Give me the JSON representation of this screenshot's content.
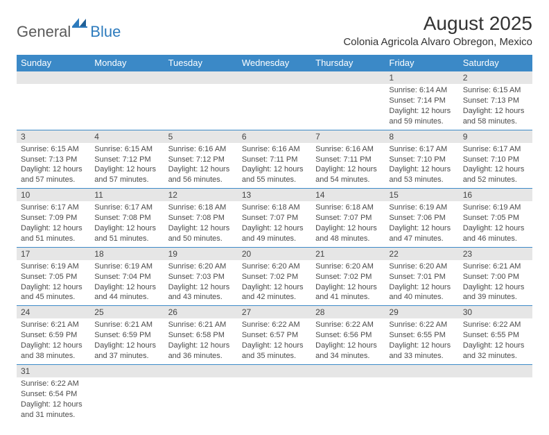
{
  "brand": {
    "part1": "General",
    "part2": "Blue"
  },
  "title": "August 2025",
  "location": "Colonia Agricola Alvaro Obregon, Mexico",
  "headers": [
    "Sunday",
    "Monday",
    "Tuesday",
    "Wednesday",
    "Thursday",
    "Friday",
    "Saturday"
  ],
  "colors": {
    "header_bg": "#3b89c7",
    "header_text": "#ffffff",
    "daynum_bg": "#e6e6e6",
    "border": "#3b89c7",
    "text": "#4a4a4a",
    "title_text": "#333333",
    "logo_gray": "#5a5a5a",
    "logo_blue": "#2d7bbd",
    "background": "#ffffff"
  },
  "typography": {
    "month_title_fontsize": 28,
    "location_fontsize": 15,
    "header_fontsize": 13,
    "cell_fontsize": 11,
    "daynum_fontsize": 12,
    "logo_fontsize": 22
  },
  "weeks": [
    [
      null,
      null,
      null,
      null,
      null,
      {
        "n": "1",
        "sr": "Sunrise: 6:14 AM",
        "ss": "Sunset: 7:14 PM",
        "d1": "Daylight: 12 hours",
        "d2": "and 59 minutes."
      },
      {
        "n": "2",
        "sr": "Sunrise: 6:15 AM",
        "ss": "Sunset: 7:13 PM",
        "d1": "Daylight: 12 hours",
        "d2": "and 58 minutes."
      }
    ],
    [
      {
        "n": "3",
        "sr": "Sunrise: 6:15 AM",
        "ss": "Sunset: 7:13 PM",
        "d1": "Daylight: 12 hours",
        "d2": "and 57 minutes."
      },
      {
        "n": "4",
        "sr": "Sunrise: 6:15 AM",
        "ss": "Sunset: 7:12 PM",
        "d1": "Daylight: 12 hours",
        "d2": "and 57 minutes."
      },
      {
        "n": "5",
        "sr": "Sunrise: 6:16 AM",
        "ss": "Sunset: 7:12 PM",
        "d1": "Daylight: 12 hours",
        "d2": "and 56 minutes."
      },
      {
        "n": "6",
        "sr": "Sunrise: 6:16 AM",
        "ss": "Sunset: 7:11 PM",
        "d1": "Daylight: 12 hours",
        "d2": "and 55 minutes."
      },
      {
        "n": "7",
        "sr": "Sunrise: 6:16 AM",
        "ss": "Sunset: 7:11 PM",
        "d1": "Daylight: 12 hours",
        "d2": "and 54 minutes."
      },
      {
        "n": "8",
        "sr": "Sunrise: 6:17 AM",
        "ss": "Sunset: 7:10 PM",
        "d1": "Daylight: 12 hours",
        "d2": "and 53 minutes."
      },
      {
        "n": "9",
        "sr": "Sunrise: 6:17 AM",
        "ss": "Sunset: 7:10 PM",
        "d1": "Daylight: 12 hours",
        "d2": "and 52 minutes."
      }
    ],
    [
      {
        "n": "10",
        "sr": "Sunrise: 6:17 AM",
        "ss": "Sunset: 7:09 PM",
        "d1": "Daylight: 12 hours",
        "d2": "and 51 minutes."
      },
      {
        "n": "11",
        "sr": "Sunrise: 6:17 AM",
        "ss": "Sunset: 7:08 PM",
        "d1": "Daylight: 12 hours",
        "d2": "and 51 minutes."
      },
      {
        "n": "12",
        "sr": "Sunrise: 6:18 AM",
        "ss": "Sunset: 7:08 PM",
        "d1": "Daylight: 12 hours",
        "d2": "and 50 minutes."
      },
      {
        "n": "13",
        "sr": "Sunrise: 6:18 AM",
        "ss": "Sunset: 7:07 PM",
        "d1": "Daylight: 12 hours",
        "d2": "and 49 minutes."
      },
      {
        "n": "14",
        "sr": "Sunrise: 6:18 AM",
        "ss": "Sunset: 7:07 PM",
        "d1": "Daylight: 12 hours",
        "d2": "and 48 minutes."
      },
      {
        "n": "15",
        "sr": "Sunrise: 6:19 AM",
        "ss": "Sunset: 7:06 PM",
        "d1": "Daylight: 12 hours",
        "d2": "and 47 minutes."
      },
      {
        "n": "16",
        "sr": "Sunrise: 6:19 AM",
        "ss": "Sunset: 7:05 PM",
        "d1": "Daylight: 12 hours",
        "d2": "and 46 minutes."
      }
    ],
    [
      {
        "n": "17",
        "sr": "Sunrise: 6:19 AM",
        "ss": "Sunset: 7:05 PM",
        "d1": "Daylight: 12 hours",
        "d2": "and 45 minutes."
      },
      {
        "n": "18",
        "sr": "Sunrise: 6:19 AM",
        "ss": "Sunset: 7:04 PM",
        "d1": "Daylight: 12 hours",
        "d2": "and 44 minutes."
      },
      {
        "n": "19",
        "sr": "Sunrise: 6:20 AM",
        "ss": "Sunset: 7:03 PM",
        "d1": "Daylight: 12 hours",
        "d2": "and 43 minutes."
      },
      {
        "n": "20",
        "sr": "Sunrise: 6:20 AM",
        "ss": "Sunset: 7:02 PM",
        "d1": "Daylight: 12 hours",
        "d2": "and 42 minutes."
      },
      {
        "n": "21",
        "sr": "Sunrise: 6:20 AM",
        "ss": "Sunset: 7:02 PM",
        "d1": "Daylight: 12 hours",
        "d2": "and 41 minutes."
      },
      {
        "n": "22",
        "sr": "Sunrise: 6:20 AM",
        "ss": "Sunset: 7:01 PM",
        "d1": "Daylight: 12 hours",
        "d2": "and 40 minutes."
      },
      {
        "n": "23",
        "sr": "Sunrise: 6:21 AM",
        "ss": "Sunset: 7:00 PM",
        "d1": "Daylight: 12 hours",
        "d2": "and 39 minutes."
      }
    ],
    [
      {
        "n": "24",
        "sr": "Sunrise: 6:21 AM",
        "ss": "Sunset: 6:59 PM",
        "d1": "Daylight: 12 hours",
        "d2": "and 38 minutes."
      },
      {
        "n": "25",
        "sr": "Sunrise: 6:21 AM",
        "ss": "Sunset: 6:59 PM",
        "d1": "Daylight: 12 hours",
        "d2": "and 37 minutes."
      },
      {
        "n": "26",
        "sr": "Sunrise: 6:21 AM",
        "ss": "Sunset: 6:58 PM",
        "d1": "Daylight: 12 hours",
        "d2": "and 36 minutes."
      },
      {
        "n": "27",
        "sr": "Sunrise: 6:22 AM",
        "ss": "Sunset: 6:57 PM",
        "d1": "Daylight: 12 hours",
        "d2": "and 35 minutes."
      },
      {
        "n": "28",
        "sr": "Sunrise: 6:22 AM",
        "ss": "Sunset: 6:56 PM",
        "d1": "Daylight: 12 hours",
        "d2": "and 34 minutes."
      },
      {
        "n": "29",
        "sr": "Sunrise: 6:22 AM",
        "ss": "Sunset: 6:55 PM",
        "d1": "Daylight: 12 hours",
        "d2": "and 33 minutes."
      },
      {
        "n": "30",
        "sr": "Sunrise: 6:22 AM",
        "ss": "Sunset: 6:55 PM",
        "d1": "Daylight: 12 hours",
        "d2": "and 32 minutes."
      }
    ],
    [
      {
        "n": "31",
        "sr": "Sunrise: 6:22 AM",
        "ss": "Sunset: 6:54 PM",
        "d1": "Daylight: 12 hours",
        "d2": "and 31 minutes."
      },
      null,
      null,
      null,
      null,
      null,
      null
    ]
  ]
}
